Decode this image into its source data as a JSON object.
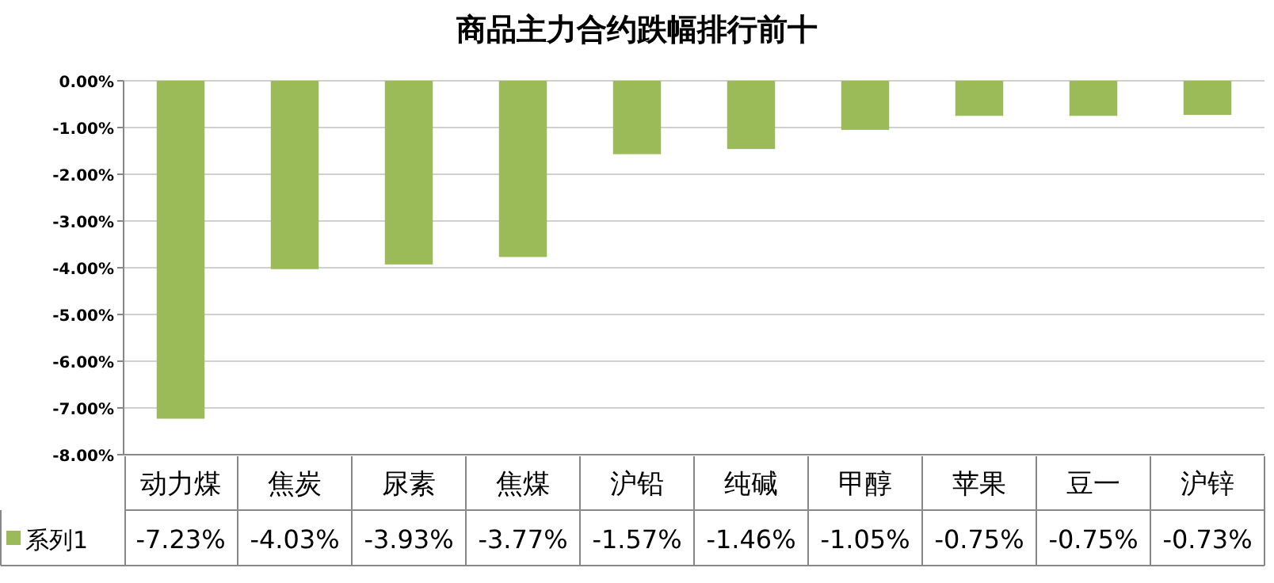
{
  "chart_data": {
    "type": "bar",
    "title": "商品主力合约跌幅排行前十",
    "categories": [
      "动力煤",
      "焦炭",
      "尿素",
      "焦煤",
      "沪铅",
      "纯碱",
      "甲醇",
      "苹果",
      "豆一",
      "沪锌"
    ],
    "series": [
      {
        "name": "系列1",
        "color": "#9bbb59",
        "values": [
          -7.23,
          -4.03,
          -3.93,
          -3.77,
          -1.57,
          -1.46,
          -1.05,
          -0.75,
          -0.75,
          -0.73
        ],
        "value_labels": [
          "-7.23%",
          "-4.03%",
          "-3.93%",
          "-3.77%",
          "-1.57%",
          "-1.46%",
          "-1.05%",
          "-0.75%",
          "-0.75%",
          "-0.73%"
        ]
      }
    ],
    "ylim": [
      -8,
      0
    ],
    "yticks": [
      {
        "value": 0,
        "label": "0.00%"
      },
      {
        "value": -1,
        "label": "-1.00%"
      },
      {
        "value": -2,
        "label": "-2.00%"
      },
      {
        "value": -3,
        "label": "-3.00%"
      },
      {
        "value": -4,
        "label": "-4.00%"
      },
      {
        "value": -5,
        "label": "-5.00%"
      },
      {
        "value": -6,
        "label": "-6.00%"
      },
      {
        "value": -7,
        "label": "-7.00%"
      },
      {
        "value": -8,
        "label": "-8.00%"
      }
    ],
    "grid": "y",
    "legend": "bottom left"
  }
}
